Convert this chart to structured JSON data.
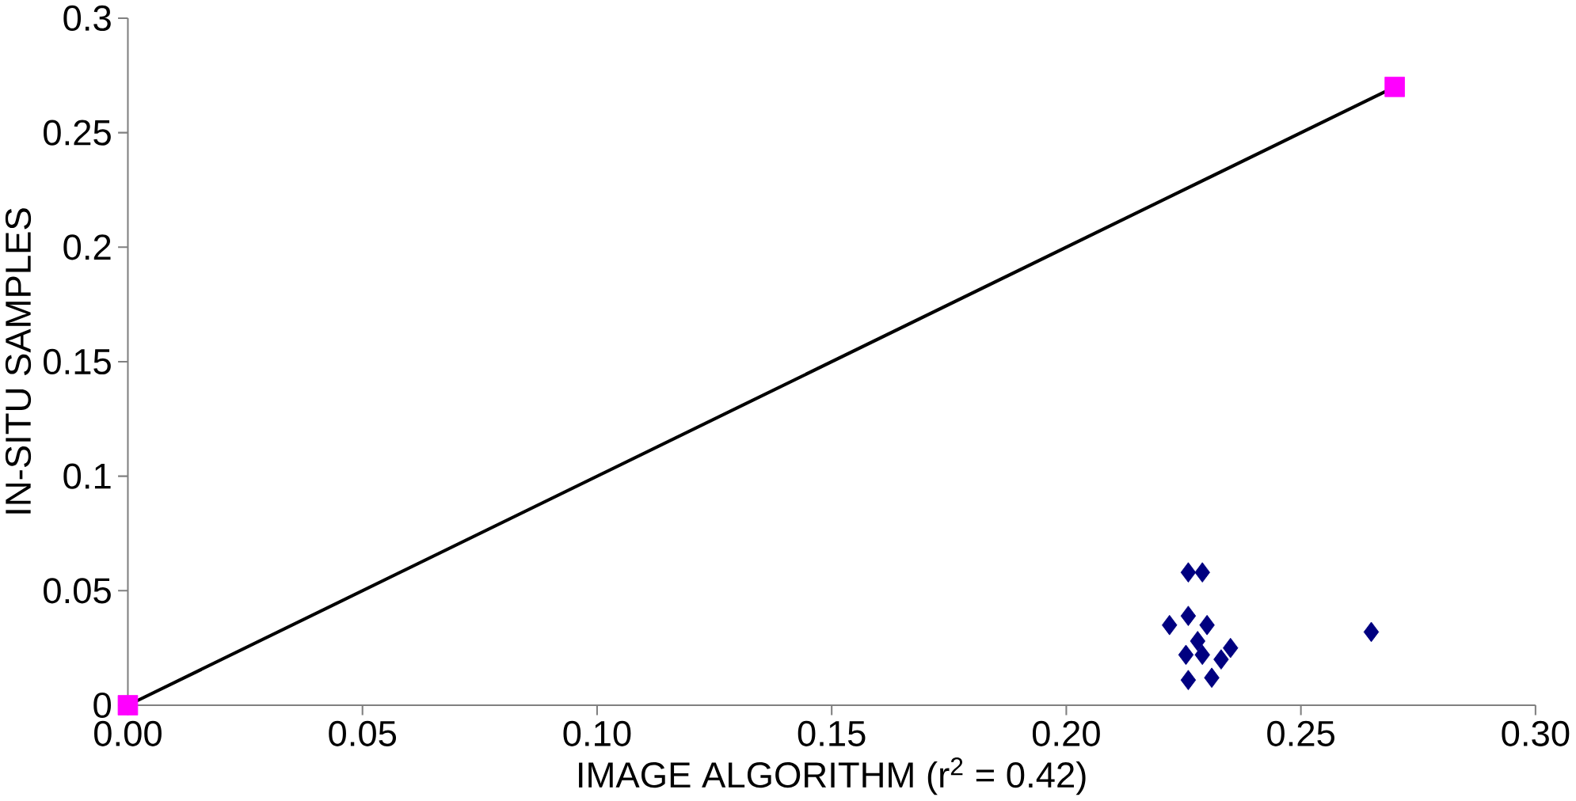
{
  "chart_data": {
    "type": "scatter",
    "xlabel": "IMAGE ALGORITHM (r$^{2}$ = 0.42)",
    "ylabel": "IN-SITU SAMPLES",
    "xlim": [
      0,
      0.3
    ],
    "ylim": [
      0,
      0.3
    ],
    "xticks": [
      {
        "value": 0,
        "label": "0.00"
      },
      {
        "value": 0.05,
        "label": "0.05"
      },
      {
        "value": 0.1,
        "label": "0.10"
      },
      {
        "value": 0.15,
        "label": "0.15"
      },
      {
        "value": 0.2,
        "label": "0.20"
      },
      {
        "value": 0.25,
        "label": "0.25"
      },
      {
        "value": 0.3,
        "label": "0.30"
      }
    ],
    "yticks": [
      0,
      0.05,
      0.1,
      0.15,
      0.2,
      0.25,
      0.3
    ],
    "grid": false,
    "series": [
      {
        "color": "#000080",
        "marker": "diamond",
        "x": [
          0.226,
          0.229,
          0.222,
          0.226,
          0.23,
          0.235,
          0.226,
          0.231,
          0.2255,
          0.229,
          0.228,
          0.233,
          0.265
        ],
        "values": [
          0.058,
          0.058,
          0.035,
          0.039,
          0.035,
          0.025,
          0.011,
          0.012,
          0.022,
          0.022,
          0.028,
          0.02,
          0.032
        ]
      },
      {
        "color": "#ff00ff",
        "marker": "square",
        "x": [
          0,
          0.27
        ],
        "values": [
          0,
          0.27
        ]
      },
      {
        "type": "line",
        "color": "#000000",
        "marker": "none",
        "line_style": "solid",
        "x": [
          0,
          0.27
        ],
        "values": [
          0,
          0.27
        ]
      }
    ]
  }
}
